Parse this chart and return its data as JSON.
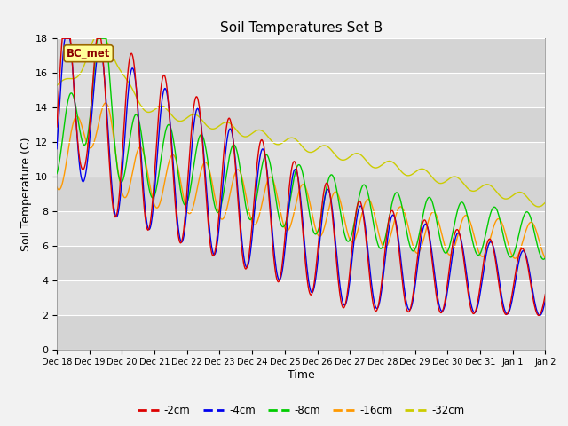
{
  "title": "Soil Temperatures Set B",
  "xlabel": "Time",
  "ylabel": "Soil Temperature (C)",
  "ylim": [
    0,
    18
  ],
  "annotation": "BC_met",
  "series_colors": {
    "-2cm": "#dd0000",
    "-4cm": "#0000ee",
    "-8cm": "#00cc00",
    "-16cm": "#ff9900",
    "-32cm": "#cccc00"
  },
  "series_labels": [
    "-2cm",
    "-4cm",
    "-8cm",
    "-16cm",
    "-32cm"
  ],
  "xtick_labels": [
    "Dec 18",
    "Dec 19",
    "Dec 20",
    "Dec 21",
    "Dec 22",
    "Dec 23",
    "Dec 24",
    "Dec 25",
    "Dec 26",
    "Dec 27",
    "Dec 28",
    "Dec 29",
    "Dec 30",
    "Dec 31",
    "Jan 1",
    "Jan 2"
  ],
  "yticks": [
    0,
    2,
    4,
    6,
    8,
    10,
    12,
    14,
    16,
    18
  ],
  "band_colors": [
    "#d4d4d4",
    "#e0e0e0"
  ]
}
